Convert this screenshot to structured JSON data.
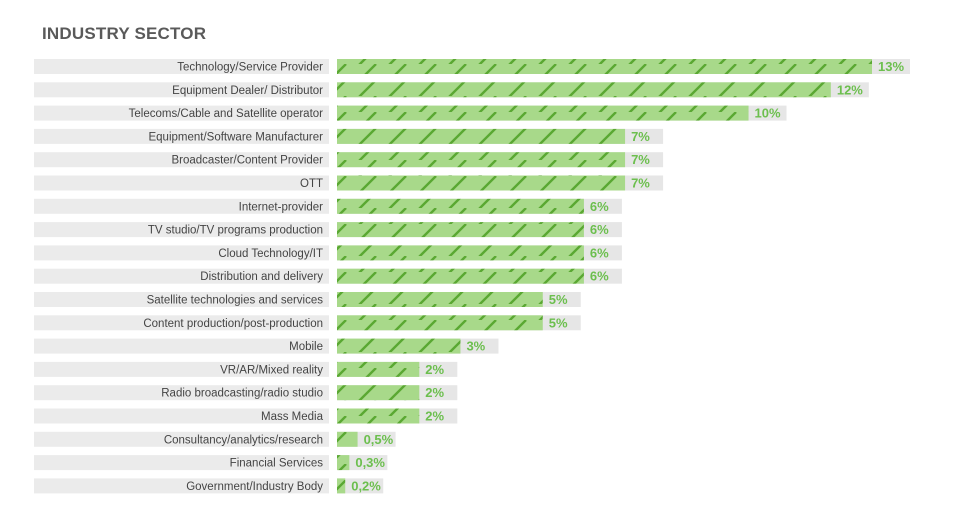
{
  "chart_data": {
    "type": "bar",
    "orientation": "horizontal",
    "title": "INDUSTRY SECTOR",
    "categories": [
      "Technology/Service Provider",
      "Equipment Dealer/ Distributor",
      "Telecoms/Cable and Satellite operator",
      "Equipment/Software Manufacturer",
      "Broadcaster/Content Provider",
      "OTT",
      "Internet-provider",
      "TV studio/TV programs production",
      "Cloud Technology/IT",
      "Distribution and delivery",
      "Satellite technologies and services",
      "Content production/post-production",
      "Mobile",
      "VR/AR/Mixed reality",
      "Radio broadcasting/radio studio",
      "Mass Media",
      "Consultancy/analytics/research",
      "Financial Services",
      "Government/Industry Body"
    ],
    "values": [
      13,
      12,
      10,
      7,
      7,
      7,
      6,
      6,
      6,
      6,
      5,
      5,
      3,
      2,
      2,
      2,
      0.5,
      0.3,
      0.2
    ],
    "value_labels": [
      "13%",
      "12%",
      "10%",
      "7%",
      "7%",
      "7%",
      "6%",
      "6%",
      "6%",
      "6%",
      "5%",
      "5%",
      "3%",
      "2%",
      "2%",
      "2%",
      "0,5%",
      "0,3%",
      "0,2%"
    ],
    "xlim": [
      0,
      13
    ],
    "grid": false,
    "colors": {
      "bar_fill": "#a8d98a",
      "bar_stripe": "#5aa832",
      "track": "#e6e6e6",
      "label_track": "#ebebeb",
      "value_text": "#6cbf4e"
    }
  }
}
